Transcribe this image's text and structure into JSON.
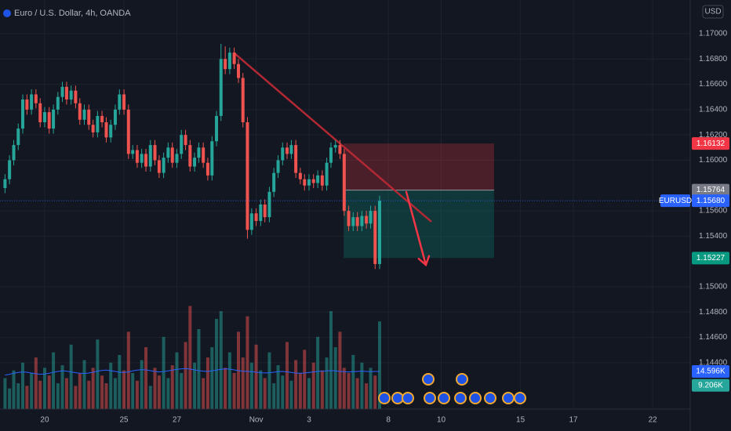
{
  "chart_data": {
    "type": "candlestick",
    "title": "Euro / U.S. Dollar, 4h, OANDA",
    "currency": "USD",
    "up_color": "#26a69a",
    "down_color": "#ef5350",
    "grid": true,
    "x": [
      -1.5,
      -1.33,
      -1.17,
      -1,
      -0.83,
      -0.67,
      -0.5,
      -0.33,
      -0.17,
      0,
      0.17,
      0.33,
      0.5,
      0.67,
      0.83,
      1,
      1.17,
      1.33,
      1.5,
      1.67,
      1.83,
      2,
      2.17,
      2.33,
      2.5,
      2.67,
      2.83,
      3,
      3.17,
      3.33,
      3.5,
      3.67,
      3.83,
      4,
      4.17,
      4.33,
      4.5,
      4.67,
      4.83,
      5,
      5.17,
      5.33,
      5.5,
      5.67,
      5.83,
      6,
      6.17,
      6.33,
      6.5,
      6.67,
      6.83,
      7,
      7.17,
      7.33,
      7.5,
      7.67,
      7.83,
      8,
      8.17,
      8.33,
      8.5,
      8.67,
      8.83,
      9,
      9.17,
      9.33,
      9.5,
      9.67,
      9.83,
      10,
      10.17,
      10.33,
      10.5,
      10.67,
      10.83,
      11,
      11.17,
      11.33,
      11.5,
      11.67,
      11.83,
      12,
      12.17,
      12.33,
      12.5,
      12.67
    ],
    "open": [
      1.1578,
      1.1585,
      1.16,
      1.1612,
      1.1625,
      1.1648,
      1.164,
      1.1652,
      1.1645,
      1.163,
      1.1638,
      1.1625,
      1.164,
      1.165,
      1.1658,
      1.1648,
      1.1655,
      1.1645,
      1.1632,
      1.164,
      1.1628,
      1.1622,
      1.1635,
      1.163,
      1.1618,
      1.1628,
      1.164,
      1.1652,
      1.164,
      1.1605,
      1.1608,
      1.1598,
      1.1605,
      1.1595,
      1.1612,
      1.16,
      1.159,
      1.1602,
      1.161,
      1.1598,
      1.1605,
      1.162,
      1.1612,
      1.1595,
      1.1602,
      1.161,
      1.1598,
      1.1588,
      1.1615,
      1.1635,
      1.168,
      1.1672,
      1.1685,
      1.1676,
      1.1665,
      1.163,
      1.1545,
      1.1558,
      1.1552,
      1.1565,
      1.1555,
      1.1575,
      1.159,
      1.16,
      1.161,
      1.1605,
      1.1612,
      1.159,
      1.1585,
      1.158,
      1.1585,
      1.1582,
      1.1588,
      1.158,
      1.1598,
      1.161,
      1.1612,
      1.1605,
      1.156,
      1.1548,
      1.1555,
      1.1548,
      1.1556,
      1.155,
      1.156,
      1.1518
    ],
    "high": [
      1.1589,
      1.1604,
      1.1616,
      1.1629,
      1.1652,
      1.1652,
      1.1656,
      1.1656,
      1.1649,
      1.1642,
      1.1642,
      1.1644,
      1.1654,
      1.1662,
      1.1662,
      1.1659,
      1.1659,
      1.1649,
      1.1644,
      1.1644,
      1.1632,
      1.1639,
      1.1639,
      1.1634,
      1.1632,
      1.1644,
      1.1656,
      1.1656,
      1.1644,
      1.1612,
      1.1612,
      1.1609,
      1.1609,
      1.1616,
      1.1616,
      1.1604,
      1.1606,
      1.1614,
      1.1614,
      1.1609,
      1.1624,
      1.1624,
      1.1616,
      1.1606,
      1.1614,
      1.1614,
      1.1602,
      1.1619,
      1.1639,
      1.1692,
      1.169,
      1.1689,
      1.1689,
      1.168,
      1.1669,
      1.1634,
      1.1562,
      1.1562,
      1.1569,
      1.1569,
      1.1579,
      1.1594,
      1.1604,
      1.1614,
      1.1614,
      1.1616,
      1.1616,
      1.1594,
      1.1589,
      1.1589,
      1.1589,
      1.1592,
      1.1592,
      1.1602,
      1.1614,
      1.1616,
      1.1616,
      1.1609,
      1.1564,
      1.1559,
      1.1559,
      1.156,
      1.156,
      1.1564,
      1.1564,
      1.1572
    ],
    "low": [
      1.1574,
      1.1581,
      1.1596,
      1.1608,
      1.1621,
      1.1636,
      1.1636,
      1.1641,
      1.1626,
      1.1626,
      1.1621,
      1.1621,
      1.1636,
      1.1646,
      1.1644,
      1.1644,
      1.1641,
      1.1628,
      1.1628,
      1.1624,
      1.1618,
      1.1618,
      1.1626,
      1.1614,
      1.1614,
      1.1624,
      1.1636,
      1.1636,
      1.1601,
      1.1601,
      1.1594,
      1.1594,
      1.1591,
      1.1591,
      1.1596,
      1.1586,
      1.1586,
      1.1598,
      1.1594,
      1.1594,
      1.1601,
      1.1608,
      1.1591,
      1.1591,
      1.1598,
      1.1594,
      1.1584,
      1.1584,
      1.1611,
      1.1631,
      1.1668,
      1.1668,
      1.1672,
      1.1661,
      1.1626,
      1.1538,
      1.1541,
      1.1548,
      1.1548,
      1.1551,
      1.1551,
      1.1571,
      1.1586,
      1.1596,
      1.1601,
      1.1601,
      1.1586,
      1.1581,
      1.1576,
      1.1576,
      1.1578,
      1.1578,
      1.1576,
      1.1576,
      1.1594,
      1.1606,
      1.1601,
      1.1556,
      1.1544,
      1.1544,
      1.1544,
      1.1544,
      1.1546,
      1.1546,
      1.1514,
      1.1514
    ],
    "close": [
      1.1585,
      1.16,
      1.1612,
      1.1625,
      1.1648,
      1.164,
      1.1652,
      1.1645,
      1.163,
      1.1638,
      1.1625,
      1.164,
      1.165,
      1.1658,
      1.1648,
      1.1655,
      1.1645,
      1.1632,
      1.164,
      1.1628,
      1.1622,
      1.1635,
      1.163,
      1.1618,
      1.1628,
      1.164,
      1.1652,
      1.164,
      1.1605,
      1.1608,
      1.1598,
      1.1605,
      1.1595,
      1.1612,
      1.16,
      1.159,
      1.1602,
      1.161,
      1.1598,
      1.1605,
      1.162,
      1.1612,
      1.1595,
      1.1602,
      1.161,
      1.1598,
      1.1588,
      1.1615,
      1.1635,
      1.168,
      1.1672,
      1.1685,
      1.1676,
      1.1665,
      1.163,
      1.1545,
      1.1558,
      1.1552,
      1.1565,
      1.1555,
      1.1575,
      1.159,
      1.16,
      1.161,
      1.1605,
      1.1612,
      1.159,
      1.1585,
      1.158,
      1.1585,
      1.1582,
      1.1588,
      1.158,
      1.1598,
      1.161,
      1.1612,
      1.1605,
      1.156,
      1.1548,
      1.1555,
      1.1548,
      1.1556,
      1.155,
      1.156,
      1.1518,
      1.1568
    ],
    "volume": [
      12,
      8,
      15,
      10,
      18,
      9,
      14,
      20,
      11,
      16,
      13,
      22,
      10,
      17,
      12,
      25,
      9,
      14,
      19,
      11,
      16,
      27,
      13,
      10,
      18,
      12,
      21,
      15,
      30,
      14,
      11,
      19,
      24,
      9,
      16,
      13,
      28,
      12,
      17,
      22,
      14,
      26,
      40,
      18,
      31,
      12,
      20,
      24,
      35,
      38,
      16,
      22,
      14,
      30,
      20,
      36,
      18,
      25,
      15,
      12,
      22,
      10,
      17,
      13,
      26,
      11,
      19,
      14,
      23,
      12,
      18,
      28,
      15,
      20,
      38,
      24,
      30,
      16,
      14,
      21,
      12,
      18,
      10,
      16,
      13,
      34
    ],
    "volume_ma": [
      13.2,
      13.5,
      13.9,
      14.2,
      14.4,
      14.3,
      14.0,
      13.7,
      13.5,
      13.6,
      13.9,
      14.3,
      14.6,
      14.8,
      14.7,
      14.4,
      14.1,
      13.9,
      13.8,
      14.0,
      14.3,
      14.7,
      15.0,
      15.1,
      14.9,
      14.6,
      14.3,
      14.2,
      14.4,
      14.8,
      15.1,
      15.3,
      15.2,
      14.9,
      14.6,
      14.4,
      14.5,
      14.8,
      15.1,
      15.4,
      15.6,
      15.7,
      15.5,
      15.2,
      14.9,
      14.7,
      14.6,
      14.8,
      15.1,
      15.4,
      15.6,
      15.5,
      15.2,
      14.9,
      14.7,
      14.6,
      14.5,
      14.3,
      14.1,
      14.0,
      14.1,
      14.3,
      14.5,
      14.6,
      14.4,
      14.2,
      14.0,
      13.9,
      14.0,
      14.2,
      14.4,
      14.6,
      14.7,
      14.8,
      14.9,
      14.8,
      14.6,
      14.5,
      14.4,
      14.5,
      14.6,
      14.7,
      14.6,
      14.5,
      14.6,
      14.596
    ],
    "volume_ma_color": "#2962ff",
    "xlim": [
      -1.69,
      24.42
    ],
    "xticks": [
      {
        "value": 0,
        "label": "20"
      },
      {
        "value": 3,
        "label": "25"
      },
      {
        "value": 5,
        "label": "27"
      },
      {
        "value": 8,
        "label": "Nov"
      },
      {
        "value": 10,
        "label": "3"
      },
      {
        "value": 13,
        "label": "8"
      },
      {
        "value": 15,
        "label": "10"
      },
      {
        "value": 18,
        "label": "15"
      },
      {
        "value": 20,
        "label": "17"
      },
      {
        "value": 23,
        "label": "22"
      }
    ],
    "ylim": [
      1.14034,
      1.17266
    ],
    "yticks": [
      {
        "value": 1.17,
        "label": "1.17000"
      },
      {
        "value": 1.168,
        "label": "1.16800"
      },
      {
        "value": 1.166,
        "label": "1.16600"
      },
      {
        "value": 1.164,
        "label": "1.16400"
      },
      {
        "value": 1.162,
        "label": "1.16200"
      },
      {
        "value": 1.16,
        "label": "1.16000"
      },
      {
        "value": 1.156,
        "label": "1.15600"
      },
      {
        "value": 1.154,
        "label": "1.15400"
      },
      {
        "value": 1.15,
        "label": "1.15000"
      },
      {
        "value": 1.148,
        "label": "1.14800"
      },
      {
        "value": 1.146,
        "label": "1.14600"
      },
      {
        "value": 1.144,
        "label": "1.14400"
      }
    ],
    "y2lim": [
      0,
      158.7
    ],
    "y2ticks": [
      {
        "value": 14.596,
        "label": "14.596K",
        "color": "#2962ff"
      },
      {
        "value": 9.206,
        "label": "9.206K",
        "color": "#26a69a"
      }
    ],
    "price_labels": [
      {
        "value": 1.16132,
        "label": "1.16132",
        "color": "#f23645"
      },
      {
        "value": 1.15764,
        "label": "1.15764",
        "color": "#787b86"
      },
      {
        "value": 1.1568,
        "label": "1.15680",
        "color": "#2962ff",
        "tag": "EURUSD"
      },
      {
        "value": 1.15227,
        "label": "1.15227",
        "color": "#089981"
      }
    ],
    "position": {
      "x": [
        11.31,
        17.0
      ]
    },
    "trend_line": {
      "x": [
        7.15,
        14.63
      ],
      "y": [
        1.1685,
        1.15514
      ],
      "color": "#b22833"
    },
    "arrow": {
      "x": [
        13.68,
        14.42
      ],
      "y": [
        1.1575,
        1.15173
      ],
      "color": "#f23645"
    }
  }
}
